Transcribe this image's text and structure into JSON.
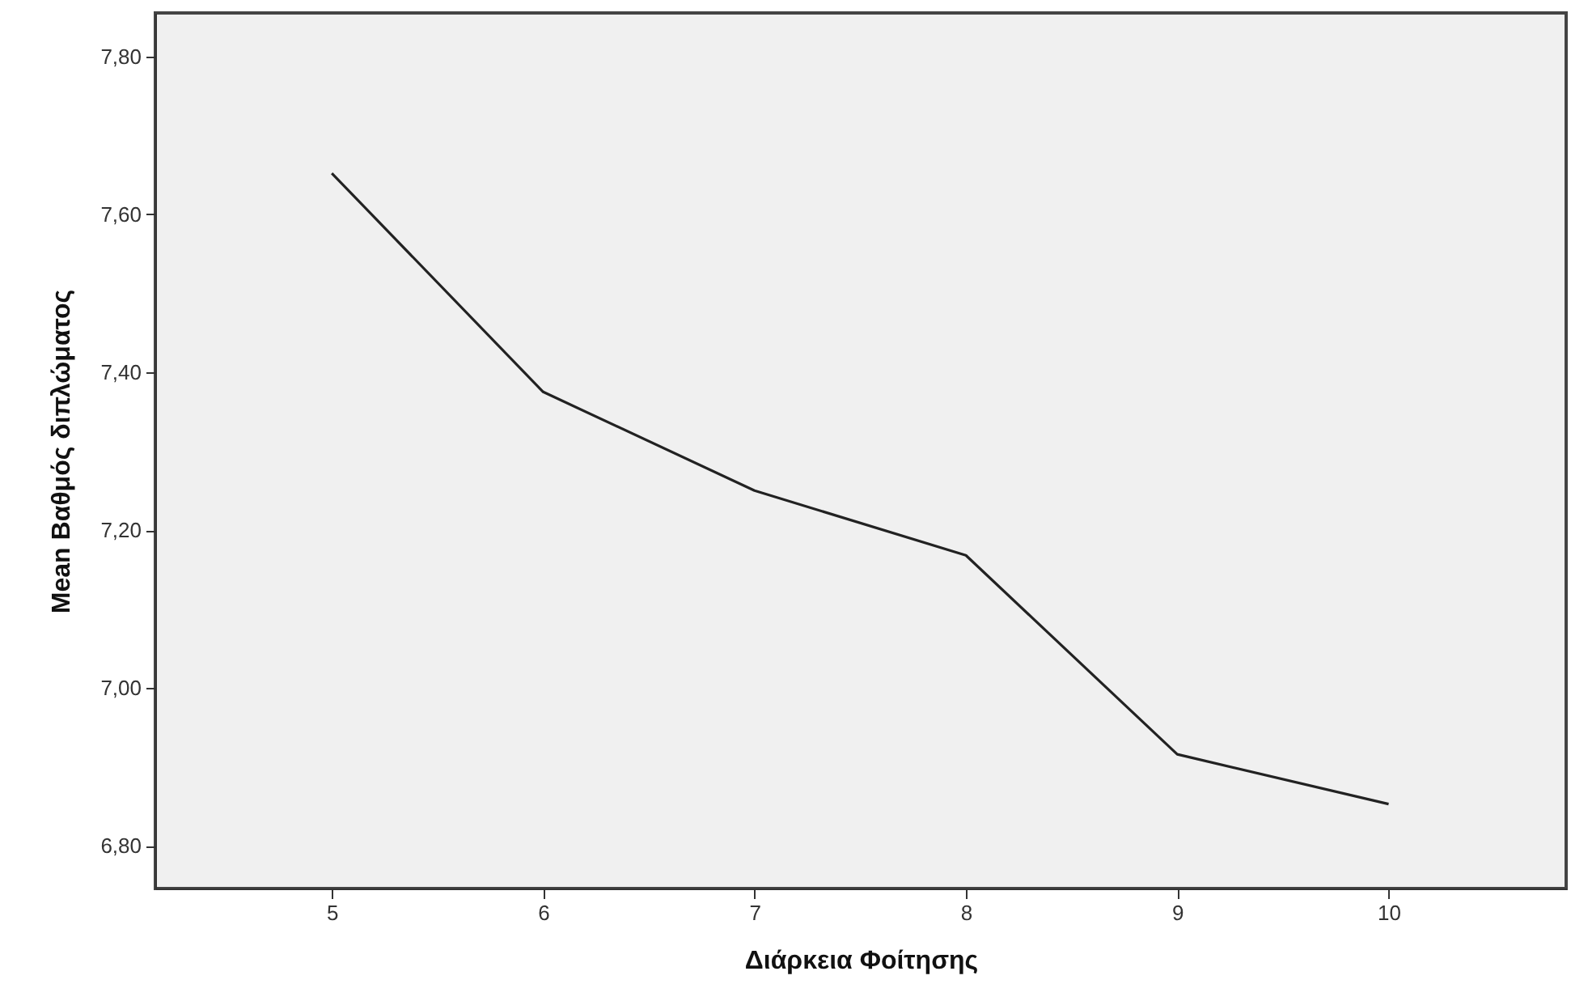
{
  "chart_data": {
    "type": "line",
    "xlabel": "Διάρκεια Φοίτησης",
    "ylabel": "Mean Βαθμός διπλώματος",
    "x": [
      5,
      6,
      7,
      8,
      9,
      10
    ],
    "series": [
      {
        "color": "#222222",
        "values": [
          7.652,
          7.375,
          7.25,
          7.168,
          6.916,
          6.853
        ]
      }
    ],
    "xlim": [
      4.165,
      10.84
    ],
    "xticks": [
      5,
      6,
      7,
      8,
      9,
      10
    ],
    "ylim": [
      6.746,
      7.855
    ],
    "yticks": [
      {
        "value": 6.8,
        "label": "6,80"
      },
      {
        "value": 7.0,
        "label": "7,00"
      },
      {
        "value": 7.2,
        "label": "7,20"
      },
      {
        "value": 7.4,
        "label": "7,40"
      },
      {
        "value": 7.6,
        "label": "7,60"
      },
      {
        "value": 7.8,
        "label": "7,80"
      }
    ]
  }
}
